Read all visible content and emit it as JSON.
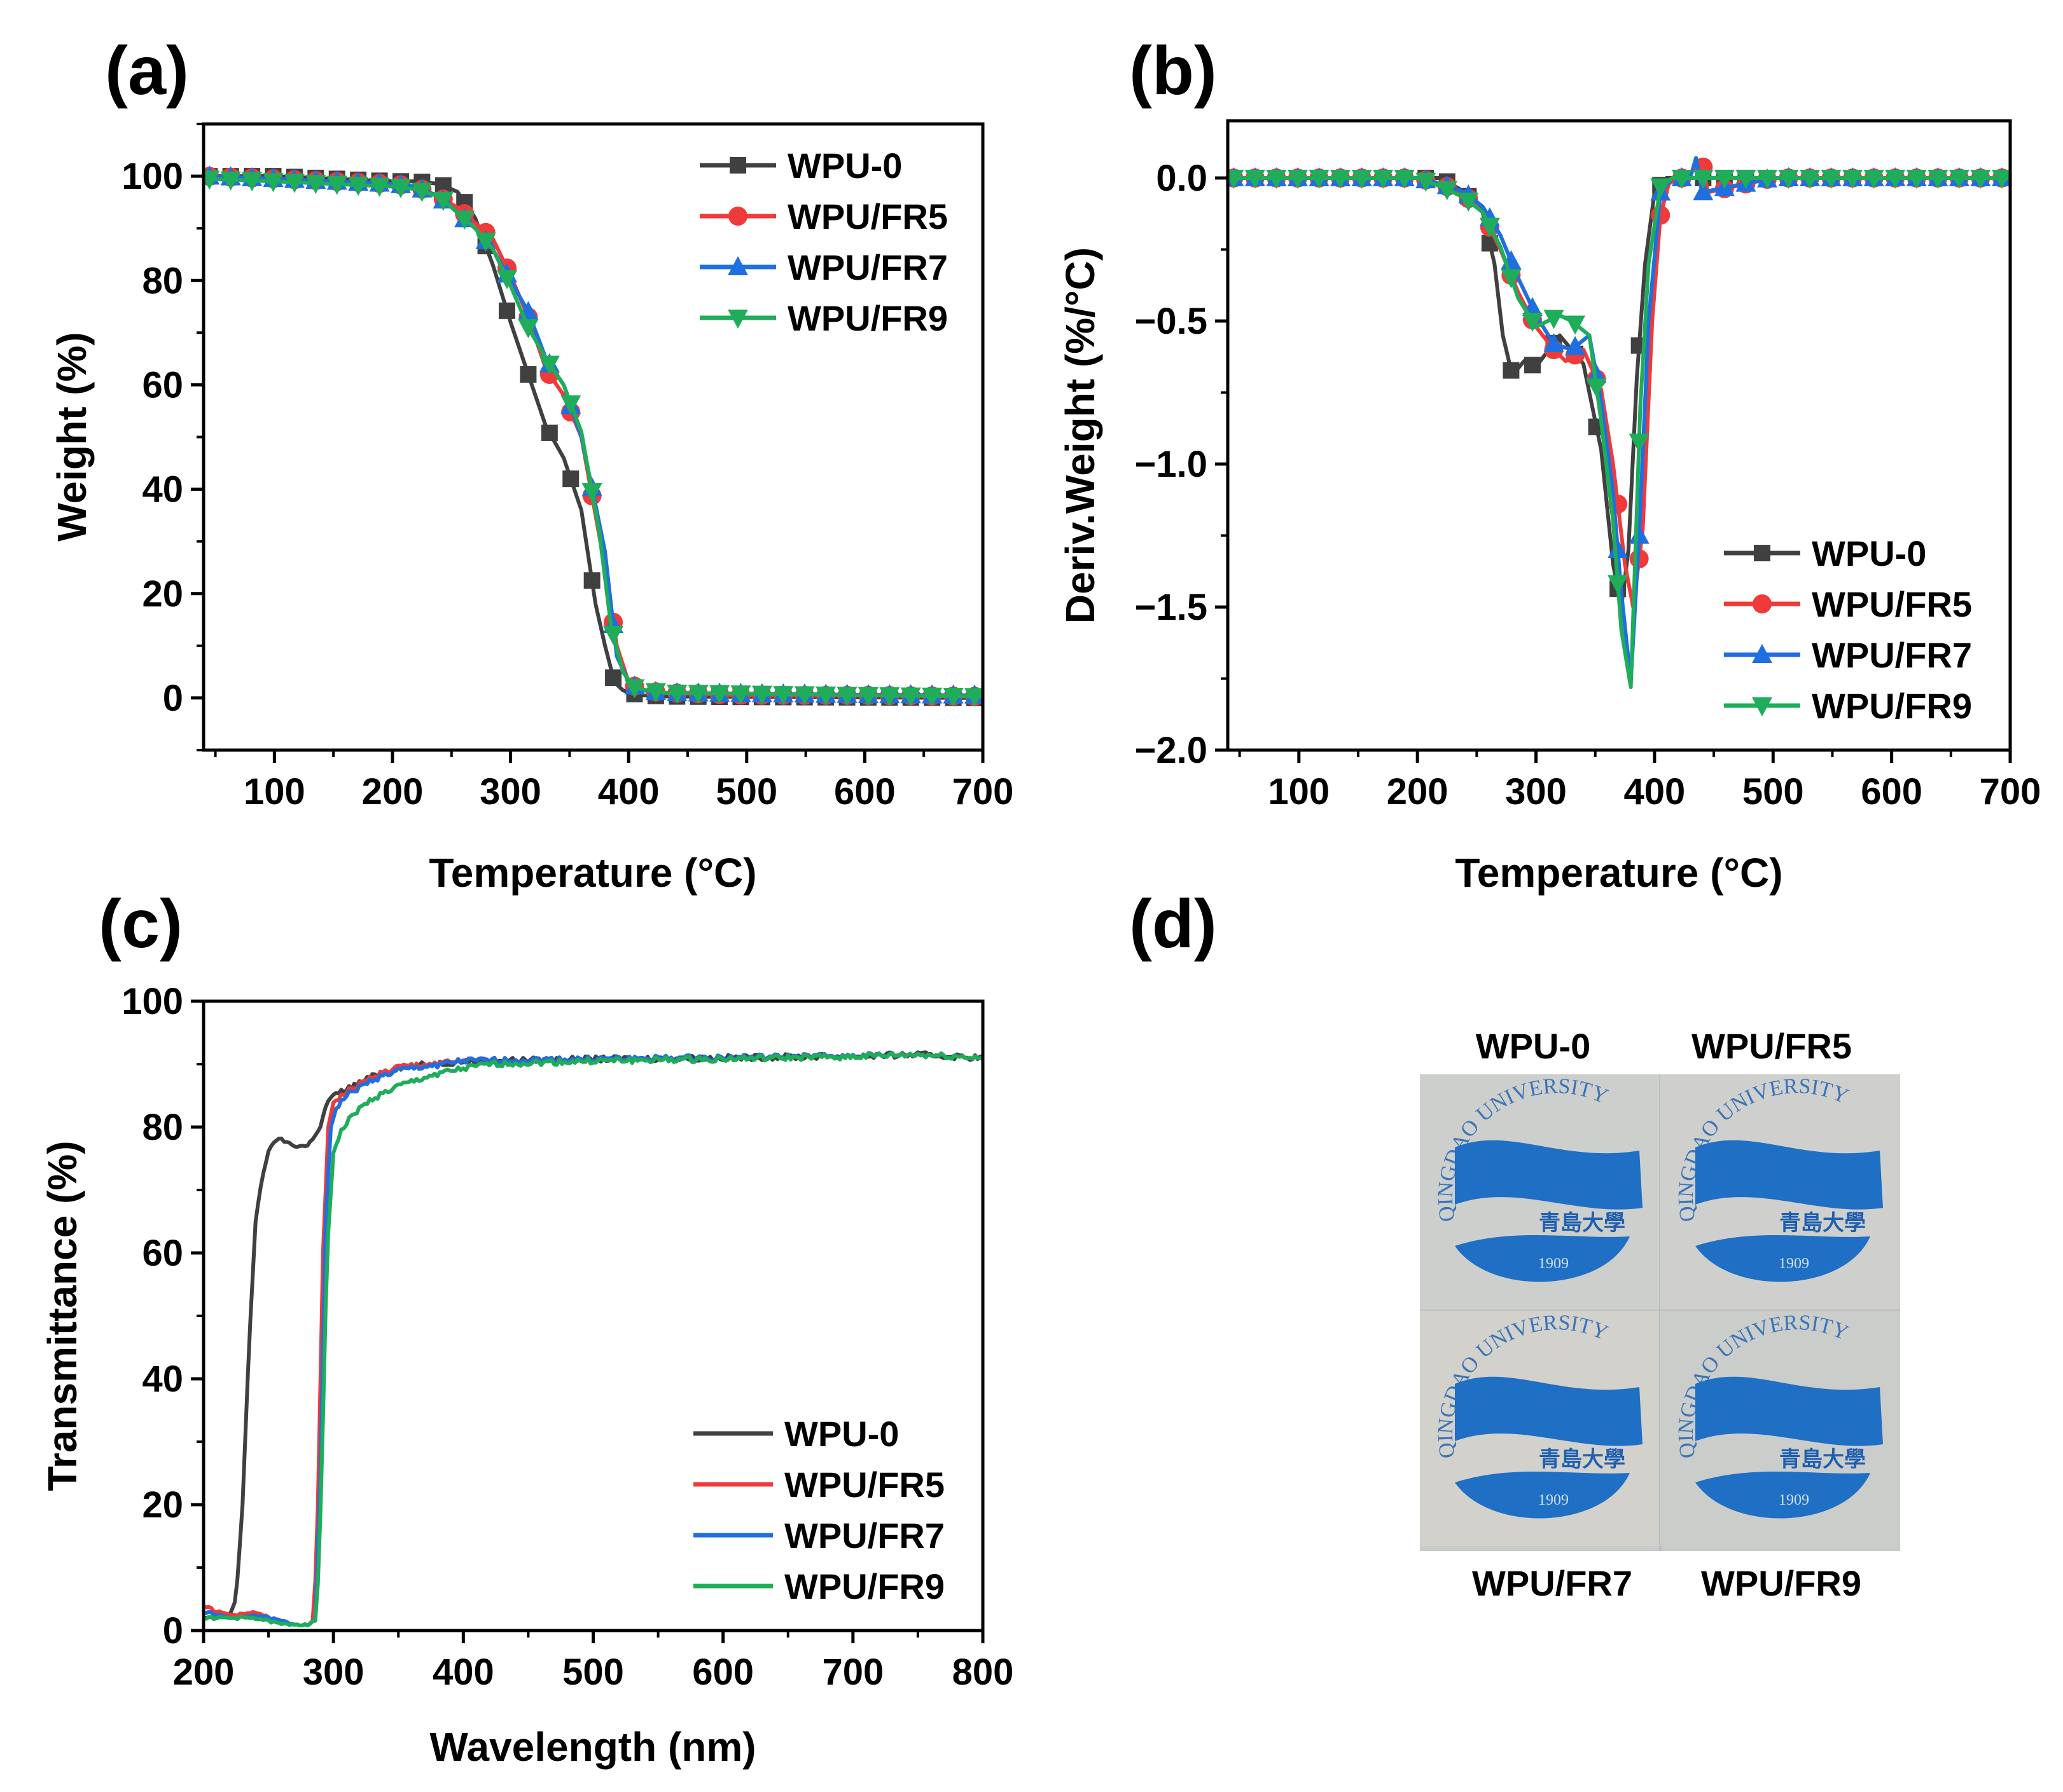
{
  "figure": {
    "panels": [
      {
        "id": "a",
        "label": "(a)"
      },
      {
        "id": "b",
        "label": "(b)"
      },
      {
        "id": "c",
        "label": "(c)"
      },
      {
        "id": "d",
        "label": "(d)"
      }
    ]
  },
  "colors": {
    "WPU-0": "#404040",
    "WPU/FR5": "#f03a3a",
    "WPU/FR7": "#1f6fe0",
    "WPU/FR9": "#1fad5a"
  },
  "chart_data": [
    {
      "panel": "a",
      "type": "line",
      "xlabel": "Temperature (°C)",
      "ylabel": "Weight (%)",
      "xlim": [
        40,
        700
      ],
      "ylim": [
        -10,
        110
      ],
      "xticks": [
        100,
        200,
        300,
        400,
        500,
        600,
        700
      ],
      "yticks": [
        0,
        20,
        40,
        60,
        80,
        100
      ],
      "legend": "top-right",
      "series": [
        {
          "name": "WPU-0",
          "marker": "square",
          "x": [
            40,
            100,
            150,
            200,
            220,
            240,
            255,
            270,
            285,
            300,
            315,
            330,
            345,
            360,
            372,
            380,
            388,
            395,
            400,
            410,
            430,
            500,
            600,
            700
          ],
          "y": [
            100,
            100,
            99.5,
            99,
            99,
            98.5,
            97,
            92,
            83,
            72,
            62,
            52,
            46,
            36,
            18,
            10,
            3,
            1.5,
            1,
            0.5,
            0.3,
            0.2,
            0.1,
            0
          ]
        },
        {
          "name": "WPU/FR5",
          "marker": "circle",
          "x": [
            40,
            100,
            150,
            200,
            220,
            240,
            255,
            270,
            285,
            300,
            315,
            330,
            345,
            360,
            372,
            380,
            390,
            400,
            410,
            430,
            500,
            600,
            700
          ],
          "y": [
            100,
            99.5,
            99,
            98.5,
            98,
            96,
            94,
            91,
            88,
            81,
            73,
            63,
            58,
            50,
            35,
            25,
            10,
            3,
            1.5,
            1,
            0.5,
            0.5,
            0.3
          ]
        },
        {
          "name": "WPU/FR7",
          "marker": "triangle-up",
          "x": [
            40,
            100,
            150,
            200,
            220,
            240,
            255,
            270,
            285,
            300,
            315,
            330,
            345,
            360,
            372,
            380,
            390,
            400,
            410,
            430,
            500,
            600,
            700
          ],
          "y": [
            100,
            99.5,
            99,
            98.5,
            98,
            96,
            93,
            90,
            86,
            80,
            74,
            65,
            60,
            50,
            37,
            28,
            8,
            3,
            1.5,
            1,
            0.8,
            0.6,
            0.5
          ]
        },
        {
          "name": "WPU/FR9",
          "marker": "triangle-down",
          "x": [
            40,
            100,
            150,
            200,
            220,
            240,
            255,
            270,
            285,
            300,
            315,
            330,
            345,
            360,
            375,
            385,
            395,
            405,
            415,
            430,
            500,
            600,
            700
          ],
          "y": [
            99.5,
            99,
            98.5,
            98,
            97.5,
            96,
            93,
            90,
            86,
            79,
            71,
            65,
            60,
            51,
            32,
            14,
            5,
            2,
            1.5,
            1,
            0.8,
            0.5,
            0.3
          ]
        }
      ]
    },
    {
      "panel": "b",
      "type": "line",
      "xlabel": "Temperature (°C)",
      "ylabel": "Deriv.Weight (%/°C)",
      "xlim": [
        40,
        700
      ],
      "ylim": [
        -2.0,
        0.2
      ],
      "xticks": [
        100,
        200,
        300,
        400,
        500,
        600,
        700
      ],
      "yticks": [
        0.0,
        -0.5,
        -1.0,
        -1.5,
        -2.0
      ],
      "ytick_labels": [
        "0.0",
        "−0.5",
        "−1.0",
        "−1.5",
        "−2.0"
      ],
      "legend": "bottom-right",
      "series": [
        {
          "name": "WPU-0",
          "marker": "square",
          "x": [
            40,
            100,
            150,
            200,
            220,
            240,
            255,
            265,
            272,
            280,
            290,
            300,
            320,
            340,
            355,
            365,
            372,
            378,
            385,
            392,
            400,
            410,
            420,
            440,
            500,
            600,
            700
          ],
          "y": [
            0,
            0,
            0,
            0,
            0,
            -0.05,
            -0.12,
            -0.3,
            -0.55,
            -0.69,
            -0.64,
            -0.66,
            -0.55,
            -0.65,
            -0.95,
            -1.35,
            -1.5,
            -1.3,
            -0.7,
            -0.3,
            -0.05,
            0,
            0,
            0,
            0,
            0,
            0
          ]
        },
        {
          "name": "WPU/FR5",
          "marker": "circle",
          "x": [
            40,
            100,
            150,
            200,
            220,
            240,
            255,
            270,
            285,
            300,
            315,
            325,
            340,
            355,
            365,
            375,
            382,
            390,
            398,
            405,
            412,
            420,
            435,
            440,
            445,
            500,
            600,
            700
          ],
          "y": [
            0,
            0,
            0,
            0,
            -0.02,
            -0.06,
            -0.12,
            -0.25,
            -0.4,
            -0.52,
            -0.6,
            -0.64,
            -0.6,
            -0.74,
            -1.0,
            -1.35,
            -1.5,
            -1.23,
            -0.5,
            -0.13,
            -0.02,
            0,
            0,
            0.06,
            -0.05,
            0,
            0,
            0
          ]
        },
        {
          "name": "WPU/FR7",
          "marker": "triangle-up",
          "x": [
            40,
            100,
            150,
            200,
            220,
            240,
            255,
            270,
            285,
            300,
            315,
            330,
            345,
            355,
            365,
            372,
            380,
            387,
            395,
            405,
            415,
            430,
            435,
            440,
            500,
            600,
            700
          ],
          "y": [
            0,
            0,
            0,
            0,
            -0.02,
            -0.05,
            -0.1,
            -0.2,
            -0.35,
            -0.48,
            -0.58,
            -0.6,
            -0.55,
            -0.78,
            -1.1,
            -1.45,
            -1.76,
            -1.25,
            -0.5,
            -0.05,
            0,
            0,
            0.07,
            -0.05,
            0,
            0,
            0
          ]
        },
        {
          "name": "WPU/FR9",
          "marker": "triangle-down",
          "x": [
            40,
            100,
            150,
            200,
            220,
            240,
            255,
            270,
            285,
            300,
            310,
            320,
            330,
            345,
            355,
            365,
            372,
            380,
            388,
            395,
            405,
            415,
            430,
            500,
            600,
            700
          ],
          "y": [
            0,
            0,
            0,
            0,
            -0.03,
            -0.07,
            -0.12,
            -0.24,
            -0.42,
            -0.52,
            -0.5,
            -0.48,
            -0.5,
            -0.55,
            -0.85,
            -1.2,
            -1.58,
            -1.78,
            -0.8,
            -0.3,
            -0.03,
            0,
            0,
            0,
            0,
            0
          ]
        }
      ]
    },
    {
      "panel": "c",
      "type": "line",
      "xlabel": "Wavelength (nm)",
      "ylabel": "Transmittance (%)",
      "xlim": [
        200,
        800
      ],
      "ylim": [
        0,
        100
      ],
      "xticks": [
        200,
        300,
        400,
        500,
        600,
        700,
        800
      ],
      "yticks": [
        0,
        20,
        40,
        60,
        80,
        100
      ],
      "legend": "bottom-right",
      "series": [
        {
          "name": "WPU-0",
          "x": [
            200,
            210,
            220,
            225,
            230,
            235,
            240,
            245,
            250,
            255,
            260,
            270,
            280,
            290,
            295,
            300,
            310,
            330,
            350,
            400,
            500,
            600,
            700,
            750,
            800
          ],
          "y": [
            2,
            2,
            2.5,
            5,
            20,
            45,
            65,
            72,
            76,
            78,
            78,
            77,
            77,
            80,
            84,
            85,
            86,
            88,
            89.5,
            90.5,
            90.8,
            91,
            91.3,
            91.5,
            91
          ]
        },
        {
          "name": "WPU/FR5",
          "x": [
            200,
            210,
            220,
            230,
            240,
            250,
            260,
            270,
            280,
            285,
            288,
            292,
            296,
            300,
            310,
            330,
            350,
            400,
            500,
            600,
            700,
            750,
            800
          ],
          "y": [
            4,
            3,
            2.5,
            2.5,
            3,
            2,
            1.5,
            1,
            1,
            1.5,
            20,
            60,
            80,
            84,
            85.5,
            88,
            89.5,
            90.5,
            90.8,
            91,
            91.3,
            91.5,
            91
          ]
        },
        {
          "name": "WPU/FR7",
          "x": [
            200,
            210,
            220,
            230,
            240,
            250,
            260,
            270,
            280,
            286,
            290,
            294,
            298,
            302,
            310,
            330,
            350,
            400,
            500,
            600,
            700,
            750,
            800
          ],
          "y": [
            3,
            2.5,
            2,
            2,
            2.5,
            2,
            1.5,
            1,
            1,
            1.5,
            25,
            65,
            80,
            83,
            85,
            87.5,
            89,
            90.5,
            90.8,
            91,
            91.3,
            91.5,
            91
          ]
        },
        {
          "name": "WPU/FR9",
          "x": [
            200,
            210,
            220,
            230,
            240,
            250,
            260,
            270,
            280,
            287,
            291,
            295,
            300,
            305,
            315,
            330,
            350,
            380,
            420,
            500,
            600,
            700,
            750,
            800
          ],
          "y": [
            2,
            2,
            2,
            2,
            2,
            1.5,
            1,
            1,
            1,
            1.5,
            25,
            60,
            76,
            79,
            82,
            84.5,
            86.5,
            88.5,
            90,
            90.5,
            90.8,
            91.2,
            91.5,
            91
          ]
        }
      ]
    }
  ],
  "photo": {
    "labels": [
      "WPU-0",
      "WPU/FR5",
      "WPU/FR7",
      "WPU/FR9"
    ],
    "logo_text": "QINGDAO UNIVERSITY",
    "logo_chinese": "青島大學",
    "logo_year": "1909"
  }
}
